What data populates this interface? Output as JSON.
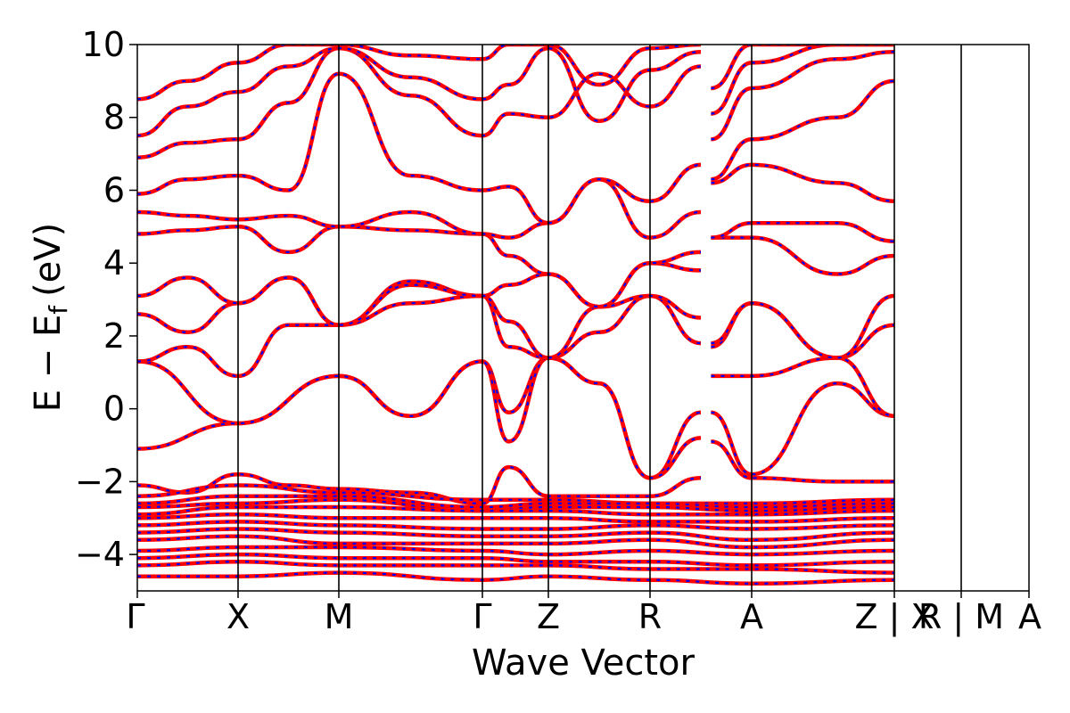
{
  "chart_data": {
    "type": "line",
    "title": "",
    "xlabel": "Wave Vector",
    "ylabel": "E − E",
    "ylabel_subscript": "f",
    "ylabel_unit": "(eV)",
    "ylim": [
      -5,
      10
    ],
    "yticks": [
      -4,
      -2,
      0,
      2,
      4,
      6,
      8,
      10
    ],
    "ytick_labels": [
      "−4",
      "−2",
      "0",
      "2",
      "4",
      "6",
      "8",
      "10"
    ],
    "high_symmetry_labels": [
      "Γ",
      "X",
      "M",
      "Γ",
      "Z",
      "R",
      "A",
      "Z | X",
      "R | M",
      "A"
    ],
    "grid": false,
    "series_styles": [
      {
        "color": "#ff0000",
        "style": "solid"
      },
      {
        "color": "#0000ff",
        "style": "dashed"
      }
    ],
    "bands": [
      [
        [
          0,
          1.3
        ],
        [
          1,
          -0.4
        ],
        [
          2,
          0.9
        ],
        [
          2.5,
          -0.2
        ],
        [
          3,
          1.3
        ],
        [
          3.4,
          -0.1
        ],
        [
          4,
          1.4
        ],
        [
          4.5,
          0.7
        ],
        [
          5,
          -1.9
        ],
        [
          5.5,
          -0.1
        ],
        [
          5.6,
          -0.1
        ],
        [
          6,
          -1.8
        ],
        [
          6.6,
          0.7
        ],
        [
          7,
          -0.2
        ]
      ],
      [
        [
          0,
          -1.1
        ],
        [
          1,
          -0.4
        ],
        [
          2,
          0.9
        ],
        [
          2.5,
          -0.2
        ],
        [
          3,
          1.3
        ],
        [
          3.4,
          -0.9
        ],
        [
          4,
          1.4
        ],
        [
          4.5,
          0.7
        ],
        [
          5,
          -1.9
        ],
        [
          5.5,
          -0.8
        ],
        [
          5.6,
          0.9
        ],
        [
          6,
          0.9
        ],
        [
          6.6,
          1.4
        ],
        [
          7,
          -0.2
        ]
      ],
      [
        [
          0,
          1.3
        ],
        [
          0.5,
          1.7
        ],
        [
          1,
          0.9
        ],
        [
          1.5,
          2.3
        ],
        [
          2,
          2.3
        ],
        [
          2.5,
          3.5
        ],
        [
          3,
          3.1
        ],
        [
          3.4,
          1.7
        ],
        [
          4,
          1.4
        ],
        [
          4.5,
          2.1
        ],
        [
          5,
          3.1
        ],
        [
          5.5,
          1.8
        ],
        [
          5.6,
          1.7
        ],
        [
          6,
          2.9
        ],
        [
          6.6,
          1.4
        ],
        [
          7,
          2.3
        ]
      ],
      [
        [
          0,
          2.6
        ],
        [
          0.5,
          2.1
        ],
        [
          1,
          2.9
        ],
        [
          1.5,
          3.6
        ],
        [
          2,
          2.3
        ],
        [
          2.5,
          2.9
        ],
        [
          3,
          3.1
        ],
        [
          3.4,
          2.4
        ],
        [
          4,
          1.4
        ],
        [
          4.5,
          2.8
        ],
        [
          5,
          3.1
        ],
        [
          5.5,
          2.5
        ],
        [
          5.6,
          1.8
        ],
        [
          6,
          2.9
        ],
        [
          6.6,
          1.4
        ],
        [
          7,
          3.1
        ]
      ],
      [
        [
          0,
          3.1
        ],
        [
          0.5,
          3.6
        ],
        [
          1,
          2.9
        ],
        [
          1.5,
          3.6
        ],
        [
          2,
          2.3
        ],
        [
          2.5,
          3.4
        ],
        [
          3,
          3.1
        ],
        [
          3.4,
          3.4
        ],
        [
          4,
          3.7
        ],
        [
          4.5,
          2.8
        ],
        [
          5,
          4.0
        ],
        [
          5.5,
          3.8
        ],
        [
          5.6,
          4.7
        ],
        [
          6,
          4.7
        ],
        [
          6.6,
          3.7
        ],
        [
          7,
          4.2
        ]
      ],
      [
        [
          0,
          4.8
        ],
        [
          0.5,
          4.9
        ],
        [
          1,
          5.0
        ],
        [
          1.5,
          4.3
        ],
        [
          2,
          5.0
        ],
        [
          2.5,
          4.9
        ],
        [
          3,
          4.8
        ],
        [
          3.4,
          4.2
        ],
        [
          4,
          3.7
        ],
        [
          4.5,
          2.8
        ],
        [
          5,
          4.0
        ],
        [
          5.5,
          4.3
        ],
        [
          5.6,
          4.7
        ],
        [
          6,
          5.1
        ],
        [
          6.6,
          5.1
        ],
        [
          7,
          4.6
        ]
      ],
      [
        [
          0,
          5.4
        ],
        [
          0.5,
          5.3
        ],
        [
          1,
          5.2
        ],
        [
          1.5,
          5.3
        ],
        [
          2,
          5.0
        ],
        [
          2.5,
          5.4
        ],
        [
          3,
          4.8
        ],
        [
          3.4,
          4.7
        ],
        [
          4,
          5.1
        ],
        [
          4.5,
          6.3
        ],
        [
          5,
          4.7
        ],
        [
          5.5,
          5.4
        ],
        [
          5.6,
          6.2
        ],
        [
          6,
          6.7
        ],
        [
          6.6,
          6.2
        ],
        [
          7,
          5.7
        ]
      ],
      [
        [
          0,
          5.9
        ],
        [
          0.5,
          6.3
        ],
        [
          1,
          6.4
        ],
        [
          1.5,
          6.0
        ],
        [
          2,
          9.2
        ],
        [
          2.5,
          6.4
        ],
        [
          3,
          6.0
        ],
        [
          3.4,
          6.1
        ],
        [
          4,
          5.1
        ],
        [
          4.5,
          6.3
        ],
        [
          5,
          5.7
        ],
        [
          5.5,
          6.7
        ],
        [
          5.6,
          6.3
        ],
        [
          6,
          7.4
        ],
        [
          6.6,
          8.0
        ],
        [
          7,
          9.0
        ]
      ],
      [
        [
          0,
          6.9
        ],
        [
          0.5,
          7.3
        ],
        [
          1,
          7.4
        ],
        [
          1.5,
          8.4
        ],
        [
          2,
          9.9
        ],
        [
          2.5,
          8.6
        ],
        [
          3,
          7.5
        ],
        [
          3.4,
          8.1
        ],
        [
          4,
          8.0
        ],
        [
          4.5,
          9.2
        ],
        [
          5,
          8.3
        ],
        [
          5.5,
          9.4
        ],
        [
          5.6,
          7.4
        ],
        [
          6,
          8.8
        ],
        [
          6.6,
          9.6
        ],
        [
          7,
          9.8
        ]
      ],
      [
        [
          0,
          7.5
        ],
        [
          0.5,
          8.3
        ],
        [
          1,
          8.7
        ],
        [
          1.5,
          9.4
        ],
        [
          2,
          9.9
        ],
        [
          2.5,
          9.1
        ],
        [
          3,
          8.5
        ],
        [
          3.4,
          8.9
        ],
        [
          4,
          9.9
        ],
        [
          4.5,
          7.9
        ],
        [
          5,
          9.3
        ],
        [
          5.5,
          9.8
        ],
        [
          5.6,
          8.1
        ],
        [
          6,
          9.5
        ],
        [
          6.6,
          10.0
        ],
        [
          7,
          10.0
        ]
      ],
      [
        [
          0,
          8.5
        ],
        [
          0.5,
          9.0
        ],
        [
          1,
          9.5
        ],
        [
          1.5,
          10.0
        ],
        [
          2,
          10.0
        ],
        [
          2.5,
          9.7
        ],
        [
          3,
          9.6
        ],
        [
          3.4,
          10.0
        ],
        [
          4,
          10.0
        ],
        [
          4.5,
          8.9
        ],
        [
          5,
          9.9
        ],
        [
          5.5,
          10.0
        ],
        [
          5.6,
          8.8
        ],
        [
          6,
          10.0
        ],
        [
          6.6,
          10.0
        ],
        [
          7,
          10.0
        ]
      ],
      [
        [
          0,
          -2.1
        ],
        [
          0.5,
          -2.3
        ],
        [
          1,
          -1.8
        ],
        [
          1.5,
          -2.1
        ],
        [
          2,
          -2.2
        ],
        [
          2.5,
          -2.3
        ],
        [
          3,
          -2.6
        ],
        [
          3.4,
          -1.6
        ],
        [
          4,
          -2.4
        ],
        [
          4.5,
          -2.4
        ],
        [
          5,
          -2.4
        ],
        [
          5.5,
          -1.9
        ],
        [
          5.6,
          -0.9
        ],
        [
          6,
          -1.9
        ],
        [
          6.6,
          -2.0
        ],
        [
          7,
          -2.0
        ]
      ],
      [
        [
          0,
          -2.4
        ],
        [
          1,
          -2.1
        ],
        [
          2,
          -2.3
        ],
        [
          3,
          -2.5
        ],
        [
          4,
          -2.5
        ],
        [
          5,
          -2.6
        ],
        [
          6,
          -2.6
        ],
        [
          7,
          -2.5
        ]
      ],
      [
        [
          0,
          -2.6
        ],
        [
          1,
          -2.4
        ],
        [
          2,
          -2.4
        ],
        [
          3,
          -2.7
        ],
        [
          4,
          -2.6
        ],
        [
          5,
          -2.6
        ],
        [
          6,
          -2.7
        ],
        [
          7,
          -2.6
        ]
      ],
      [
        [
          0,
          -2.7
        ],
        [
          1,
          -2.6
        ],
        [
          2,
          -2.5
        ],
        [
          3,
          -2.8
        ],
        [
          4,
          -2.7
        ],
        [
          5,
          -2.7
        ],
        [
          6,
          -2.8
        ],
        [
          7,
          -2.7
        ]
      ],
      [
        [
          0,
          -2.9
        ],
        [
          1,
          -2.7
        ],
        [
          2,
          -2.7
        ],
        [
          3,
          -2.8
        ],
        [
          4,
          -2.8
        ],
        [
          5,
          -2.9
        ],
        [
          6,
          -2.9
        ],
        [
          7,
          -2.8
        ]
      ],
      [
        [
          0,
          -3.0
        ],
        [
          1,
          -2.9
        ],
        [
          2,
          -3.0
        ],
        [
          3,
          -3.0
        ],
        [
          4,
          -3.0
        ],
        [
          5,
          -3.1
        ],
        [
          6,
          -3.1
        ],
        [
          7,
          -3.0
        ]
      ],
      [
        [
          0,
          -3.2
        ],
        [
          1,
          -3.1
        ],
        [
          2,
          -3.2
        ],
        [
          3,
          -3.3
        ],
        [
          4,
          -3.3
        ],
        [
          5,
          -3.2
        ],
        [
          6,
          -3.3
        ],
        [
          7,
          -3.2
        ]
      ],
      [
        [
          0,
          -3.4
        ],
        [
          1,
          -3.3
        ],
        [
          2,
          -3.4
        ],
        [
          3,
          -3.5
        ],
        [
          4,
          -3.5
        ],
        [
          5,
          -3.4
        ],
        [
          6,
          -3.6
        ],
        [
          7,
          -3.4
        ]
      ],
      [
        [
          0,
          -3.6
        ],
        [
          1,
          -3.5
        ],
        [
          2,
          -3.7
        ],
        [
          3,
          -3.7
        ],
        [
          4,
          -3.7
        ],
        [
          5,
          -3.6
        ],
        [
          6,
          -3.8
        ],
        [
          7,
          -3.6
        ]
      ],
      [
        [
          0,
          -3.9
        ],
        [
          1,
          -3.8
        ],
        [
          2,
          -3.8
        ],
        [
          3,
          -3.9
        ],
        [
          4,
          -4.0
        ],
        [
          5,
          -3.9
        ],
        [
          6,
          -4.0
        ],
        [
          7,
          -3.9
        ]
      ],
      [
        [
          0,
          -4.1
        ],
        [
          1,
          -4.0
        ],
        [
          2,
          -4.1
        ],
        [
          3,
          -4.1
        ],
        [
          4,
          -4.2
        ],
        [
          5,
          -4.2
        ],
        [
          6,
          -4.3
        ],
        [
          7,
          -4.2
        ]
      ],
      [
        [
          0,
          -4.3
        ],
        [
          1,
          -4.2
        ],
        [
          2,
          -4.3
        ],
        [
          3,
          -4.3
        ],
        [
          4,
          -4.3
        ],
        [
          5,
          -4.4
        ],
        [
          6,
          -4.4
        ],
        [
          7,
          -4.5
        ]
      ],
      [
        [
          0,
          -4.6
        ],
        [
          1,
          -4.6
        ],
        [
          2,
          -4.5
        ],
        [
          3,
          -4.7
        ],
        [
          4,
          -4.6
        ],
        [
          5,
          -4.7
        ],
        [
          6,
          -4.8
        ],
        [
          7,
          -4.7
        ]
      ]
    ]
  }
}
